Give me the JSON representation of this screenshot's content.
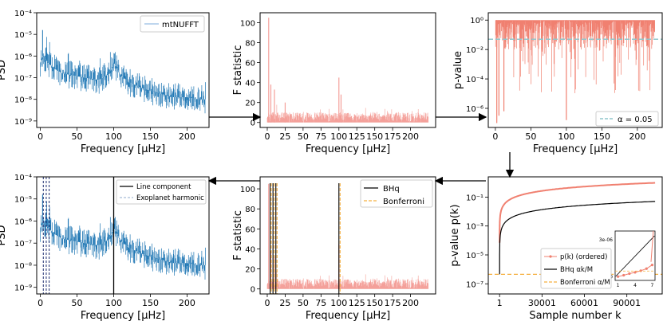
{
  "colors": {
    "psd": "#1f77b4",
    "fstat": "#f4a09a",
    "pval": "#f08070",
    "alpha_line": "#8fc6cc",
    "bhq": "#000000",
    "bonf": "#f5b041",
    "line_component": "#000000",
    "harmonic": "#1a2a6c"
  },
  "chart_data": [
    {
      "id": "psd_top",
      "type": "line",
      "ylabel": "PSD",
      "xlabel": "Frequency [μHz]",
      "xlim": [
        -5,
        230
      ],
      "ylim_log10": [
        -9.3,
        -4
      ],
      "xticks": [
        0,
        50,
        100,
        150,
        200
      ],
      "xtick_labels": [
        "0",
        "50",
        "100",
        "150",
        "200"
      ],
      "yticks_log10": [
        -9,
        -8,
        -7,
        -6,
        -5,
        -4
      ],
      "ytick_labels": [
        "10⁻⁹",
        "10⁻⁸",
        "10⁻⁷",
        "10⁻⁶",
        "10⁻⁵",
        "10⁻⁴"
      ],
      "legend": [
        "mtNUFFT"
      ],
      "legend_position": "top-right",
      "series": [
        {
          "name": "mtNUFFT",
          "x": [
            0,
            3,
            5,
            10,
            20,
            30,
            45,
            60,
            80,
            95,
            100,
            105,
            110,
            120,
            140,
            160,
            180,
            200,
            215,
            225
          ],
          "log10_center": [
            -6.3,
            -6.0,
            -6.0,
            -6.3,
            -6.6,
            -6.8,
            -6.9,
            -7.0,
            -7.1,
            -6.8,
            -6.3,
            -6.6,
            -6.9,
            -7.2,
            -7.5,
            -7.7,
            -7.9,
            -7.9,
            -8.0,
            -8.0
          ]
        }
      ]
    },
    {
      "id": "fstat_top",
      "type": "line",
      "ylabel": "F statistic",
      "xlabel": "Frequency [μHz]",
      "xlim": [
        -10,
        235
      ],
      "ylim": [
        -5,
        110
      ],
      "xticks": [
        0,
        25,
        50,
        75,
        100,
        125,
        150,
        175,
        200
      ],
      "xtick_labels": [
        "0",
        "25",
        "50",
        "75",
        "100",
        "125",
        "150",
        "175",
        "200"
      ],
      "yticks": [
        0,
        20,
        40,
        60,
        80,
        100
      ],
      "ytick_labels": [
        "0",
        "20",
        "40",
        "60",
        "80",
        "100"
      ],
      "spikes": [
        {
          "x": 2,
          "y": 105
        },
        {
          "x": 5,
          "y": 38
        },
        {
          "x": 10,
          "y": 33
        },
        {
          "x": 25,
          "y": 20
        },
        {
          "x": 100,
          "y": 45
        },
        {
          "x": 103,
          "y": 28
        }
      ]
    },
    {
      "id": "pvalue_top",
      "type": "line",
      "ylabel": "p-value",
      "xlabel": "Frequency [μHz]",
      "xlim": [
        -10,
        235
      ],
      "ylim_log10": [
        -7.3,
        0.5
      ],
      "xticks": [
        0,
        50,
        100,
        150,
        200
      ],
      "xtick_labels": [
        "0",
        "50",
        "100",
        "150",
        "200"
      ],
      "yticks_log10": [
        0,
        -2,
        -4,
        -6
      ],
      "ytick_labels": [
        "10⁰",
        "10⁻²",
        "10⁻⁴",
        "10⁻⁶"
      ],
      "legend": [
        "α = 0.05"
      ],
      "legend_position": "lower-right",
      "alpha": 0.05,
      "dips": [
        {
          "x": 2,
          "log10": -7
        },
        {
          "x": 5,
          "log10": -6.5
        },
        {
          "x": 12,
          "log10": -6.2
        },
        {
          "x": 100,
          "log10": -6.8
        }
      ]
    },
    {
      "id": "psd_bottom",
      "type": "line",
      "ylabel": "PSD",
      "xlabel": "Frequency [μHz]",
      "xlim": [
        -5,
        230
      ],
      "ylim_log10": [
        -9.3,
        -4
      ],
      "xticks": [
        0,
        50,
        100,
        150,
        200
      ],
      "xtick_labels": [
        "0",
        "50",
        "100",
        "150",
        "200"
      ],
      "yticks_log10": [
        -9,
        -8,
        -7,
        -6,
        -5,
        -4
      ],
      "ytick_labels": [
        "10⁻⁹",
        "10⁻⁸",
        "10⁻⁷",
        "10⁻⁶",
        "10⁻⁵",
        "10⁻⁴"
      ],
      "legend": [
        "Line component",
        "Exoplanet harmonic"
      ],
      "legend_position": "top-right",
      "line_component_x": [
        100
      ],
      "harmonic_x": [
        4,
        8,
        12
      ]
    },
    {
      "id": "fstat_bottom",
      "type": "line",
      "ylabel": "F statistic",
      "xlabel": "Frequency [μHz]",
      "xlim": [
        -10,
        235
      ],
      "ylim": [
        -5,
        112
      ],
      "xticks": [
        0,
        25,
        50,
        75,
        100,
        125,
        150,
        175,
        200
      ],
      "xtick_labels": [
        "0",
        "25",
        "50",
        "75",
        "100",
        "125",
        "150",
        "175",
        "200"
      ],
      "yticks": [
        0,
        20,
        40,
        60,
        80,
        100
      ],
      "ytick_labels": [
        "0",
        "20",
        "40",
        "60",
        "80",
        "100"
      ],
      "legend": [
        "BHq",
        "Bonferroni"
      ],
      "legend_position": "top-right",
      "detections_x": [
        4,
        8,
        12,
        100
      ]
    },
    {
      "id": "pvalue_sorted",
      "type": "line",
      "ylabel": "p-value p(k)",
      "xlabel": "Sample number k",
      "xlim": [
        -8000,
        115000
      ],
      "ylim_log10": [
        -7.7,
        0.4
      ],
      "xticks": [
        1,
        30001,
        60001,
        90001
      ],
      "xtick_labels": [
        "1",
        "30001",
        "60001",
        "90001"
      ],
      "yticks_log10": [
        -1,
        -3,
        -5,
        -7
      ],
      "ytick_labels": [
        "10⁻¹",
        "10⁻³",
        "10⁻⁵",
        "10⁻⁷"
      ],
      "legend": [
        "p(k) (ordered)",
        "BHq αk/M",
        "Bonferroni α/M"
      ],
      "legend_position": "lower-center",
      "M": 110000,
      "alpha": 0.05,
      "inset": {
        "xticks": [
          1,
          4,
          7
        ],
        "xtick_labels": [
          "1",
          "4",
          "7"
        ],
        "yticks": [
          0,
          3e-06
        ],
        "ytick_labels": [
          "0",
          "3e-06"
        ],
        "points_x": [
          1,
          2,
          3,
          4,
          5,
          6,
          7
        ],
        "points_y": [
          1e-08,
          1.2e-07,
          2.5e-07,
          3.5e-07,
          4.8e-07,
          6.5e-07,
          9.5e-07
        ]
      }
    }
  ]
}
